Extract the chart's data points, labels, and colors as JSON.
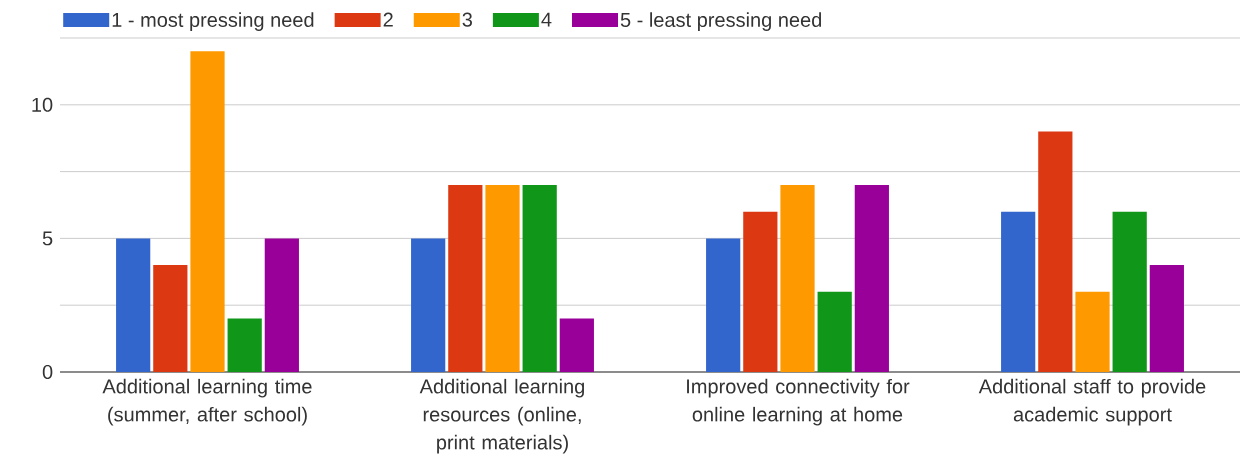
{
  "chart_data": {
    "type": "bar",
    "categories": [
      "Additional learning time (summer, after school)",
      "Additional learning resources (online, print materials)",
      "Improved connectivity for online learning at home",
      "Additional staff to provide academic support"
    ],
    "series": [
      {
        "name": "1 - most pressing need",
        "color": "#3366cc",
        "values": [
          5,
          5,
          5,
          6
        ]
      },
      {
        "name": "2",
        "color": "#dc3912",
        "values": [
          4,
          7,
          6,
          9
        ]
      },
      {
        "name": "3",
        "color": "#ff9900",
        "values": [
          12,
          7,
          7,
          3
        ]
      },
      {
        "name": "4",
        "color": "#109618",
        "values": [
          2,
          7,
          3,
          6
        ]
      },
      {
        "name": "5 - least pressing need",
        "color": "#990099",
        "values": [
          5,
          2,
          7,
          4
        ]
      }
    ],
    "ylim": [
      0,
      12.5
    ],
    "yticks": [
      0,
      {
        "value": 2.5,
        "label": null
      },
      5,
      {
        "value": 7.5,
        "label": null
      },
      10,
      {
        "value": 12.5,
        "label": null
      }
    ],
    "grid": "y",
    "legend": "top left"
  }
}
